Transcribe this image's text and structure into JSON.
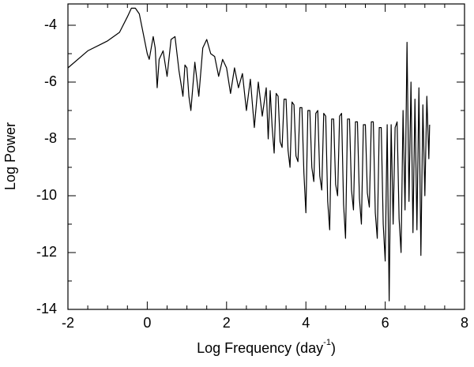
{
  "chart_data": {
    "type": "line",
    "xlabel": [
      "Log Frequency (day",
      "-1",
      ")"
    ],
    "ylabel": "Log Power",
    "xlim": [
      -2,
      8
    ],
    "ylim": [
      -14,
      -3.25
    ],
    "xticks": [
      -2,
      0,
      2,
      4,
      6,
      8
    ],
    "yticks": [
      -14,
      -12,
      -10,
      -8,
      -6,
      -4
    ],
    "xminorticks": [
      -1.5,
      -1,
      -0.5,
      0.5,
      1,
      1.5,
      2.5,
      3,
      3.5,
      4.5,
      5,
      5.5,
      6.5,
      7,
      7.5
    ],
    "yminorticks": [
      -13,
      -11,
      -9,
      -7,
      -5
    ],
    "series": [
      {
        "color": "#000000",
        "x": [
          -2,
          -1.5,
          -1,
          -0.7,
          -0.5,
          -0.4,
          -0.3,
          -0.2,
          -0.1,
          0,
          0.05,
          0.1,
          0.15,
          0.2,
          0.25,
          0.3,
          0.4,
          0.5,
          0.6,
          0.7,
          0.8,
          0.9,
          0.95,
          1.0,
          1.05,
          1.1,
          1.2,
          1.3,
          1.4,
          1.5,
          1.6,
          1.7,
          1.8,
          1.9,
          2.0,
          2.1,
          2.2,
          2.3,
          2.4,
          2.5,
          2.6,
          2.7,
          2.8,
          2.9,
          3.0,
          3.05,
          3.1,
          3.15,
          3.2,
          3.25,
          3.3,
          3.35,
          3.4,
          3.45,
          3.5,
          3.55,
          3.6,
          3.65,
          3.7,
          3.75,
          3.8,
          3.85,
          3.9,
          3.95,
          4.0,
          4.05,
          4.1,
          4.15,
          4.2,
          4.25,
          4.3,
          4.35,
          4.4,
          4.45,
          4.5,
          4.55,
          4.6,
          4.65,
          4.7,
          4.75,
          4.8,
          4.85,
          4.9,
          4.95,
          5.0,
          5.05,
          5.1,
          5.15,
          5.2,
          5.25,
          5.3,
          5.35,
          5.4,
          5.45,
          5.5,
          5.55,
          5.6,
          5.65,
          5.7,
          5.75,
          5.8,
          5.85,
          5.9,
          5.95,
          6.0,
          6.05,
          6.1,
          6.15,
          6.2,
          6.25,
          6.3,
          6.35,
          6.4,
          6.45,
          6.5,
          6.55,
          6.6,
          6.65,
          6.7,
          6.75,
          6.8,
          6.85,
          6.9,
          6.95,
          7.0,
          7.05,
          7.1,
          7.12
        ],
        "values": [
          -5.5,
          -4.9,
          -4.55,
          -4.25,
          -3.7,
          -3.4,
          -3.4,
          -3.6,
          -4.3,
          -5.0,
          -5.2,
          -4.8,
          -4.4,
          -4.8,
          -6.2,
          -5.2,
          -4.9,
          -5.8,
          -4.5,
          -4.4,
          -5.6,
          -6.5,
          -5.4,
          -5.5,
          -6.5,
          -7.0,
          -5.3,
          -6.5,
          -4.8,
          -4.5,
          -5.0,
          -5.1,
          -5.8,
          -5.2,
          -5.5,
          -6.4,
          -5.5,
          -6.2,
          -5.7,
          -7.0,
          -5.9,
          -7.6,
          -6.0,
          -7.2,
          -6.2,
          -8.0,
          -6.3,
          -7.6,
          -8.5,
          -6.4,
          -6.5,
          -8.1,
          -8.3,
          -6.6,
          -6.6,
          -8.4,
          -9.0,
          -6.7,
          -6.8,
          -8.6,
          -8.8,
          -6.9,
          -6.9,
          -9.2,
          -10.6,
          -7.0,
          -7.0,
          -9.0,
          -9.5,
          -7.1,
          -7.0,
          -9.3,
          -9.8,
          -7.1,
          -7.2,
          -10.2,
          -11.2,
          -7.3,
          -7.3,
          -9.6,
          -10.0,
          -7.2,
          -7.1,
          -10.3,
          -11.5,
          -7.3,
          -7.3,
          -9.8,
          -10.5,
          -7.4,
          -7.4,
          -10.1,
          -11.0,
          -7.5,
          -7.5,
          -9.9,
          -10.4,
          -7.4,
          -7.4,
          -10.6,
          -11.5,
          -7.6,
          -7.6,
          -11.0,
          -12.3,
          -7.5,
          -13.7,
          -7.5,
          -11.0,
          -7.6,
          -7.4,
          -10.8,
          -12.0,
          -7.0,
          -10.5,
          -4.6,
          -10.2,
          -6.0,
          -11.3,
          -6.6,
          -11.2,
          -6.2,
          -12.1,
          -6.8,
          -10.0,
          -6.5,
          -8.7,
          -7.5
        ]
      }
    ]
  }
}
